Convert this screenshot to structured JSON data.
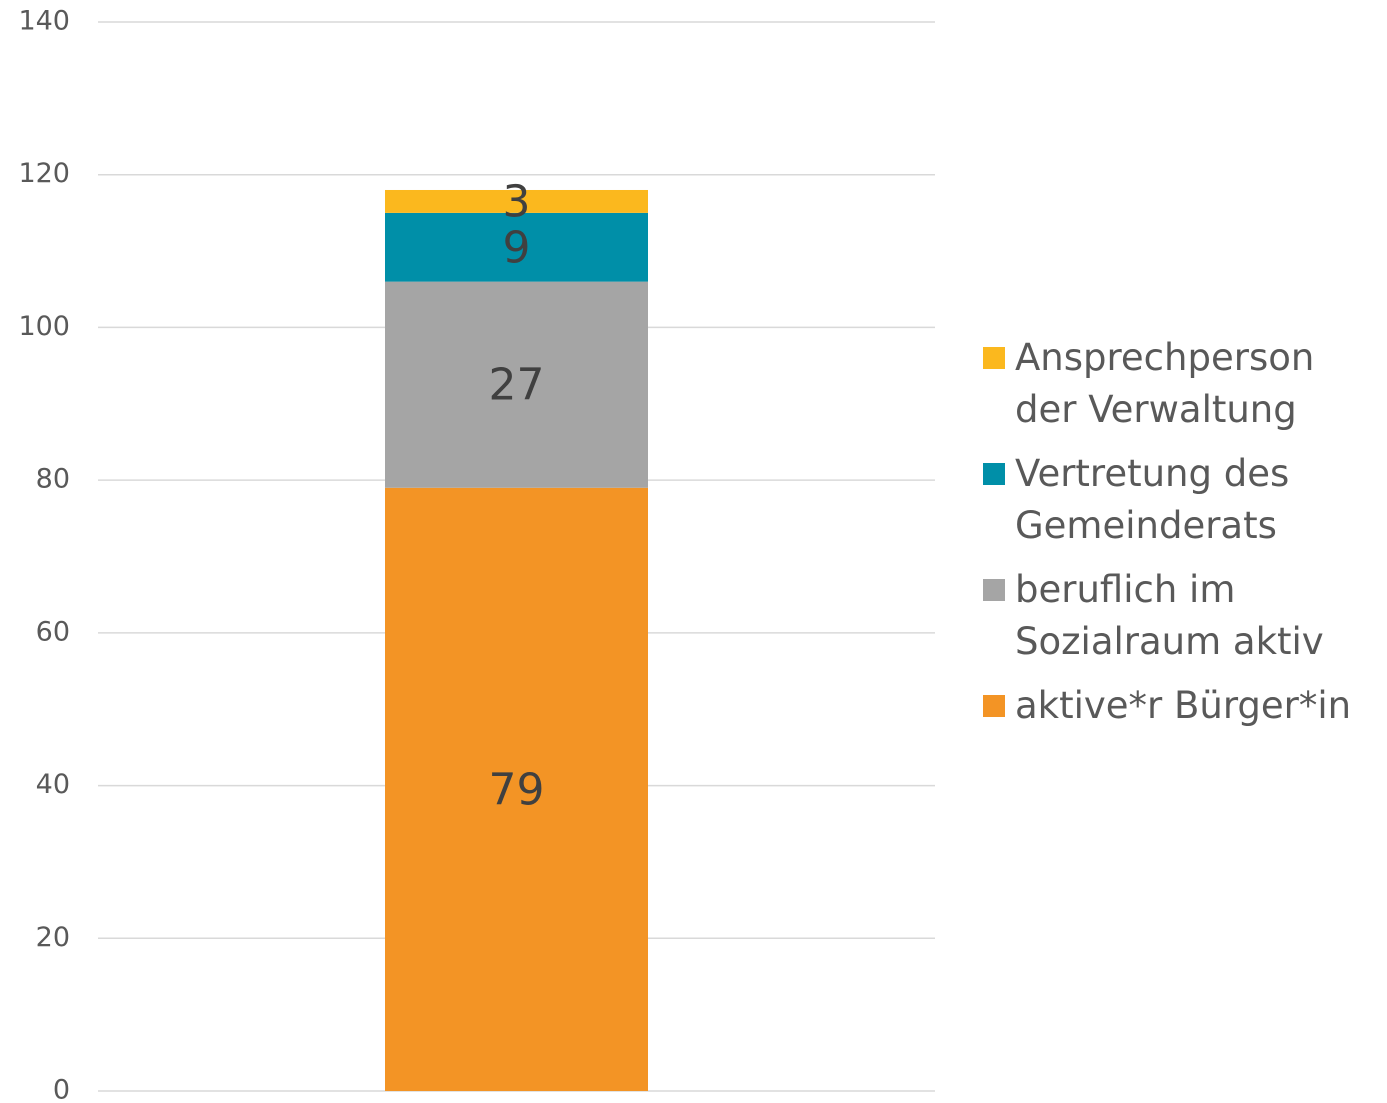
{
  "chart_data": {
    "type": "stacked_bar",
    "categories": [
      null
    ],
    "series": [
      {
        "name": "aktive*r Bürger*in",
        "color": "#f39425",
        "values": [
          79
        ]
      },
      {
        "name": "beruflich im Sozialraum aktiv",
        "color": "#a5a5a5",
        "values": [
          27
        ]
      },
      {
        "name": "Vertretung des Gemeinderats",
        "color": "#008fa8",
        "values": [
          9
        ]
      },
      {
        "name": "Ansprechperson der Verwaltung",
        "color": "#fbb81e",
        "values": [
          3
        ]
      }
    ],
    "ylim": [
      0,
      140
    ],
    "yticks": [
      0,
      20,
      40,
      60,
      80,
      100,
      120,
      140
    ],
    "grid": true,
    "legend": "right"
  }
}
